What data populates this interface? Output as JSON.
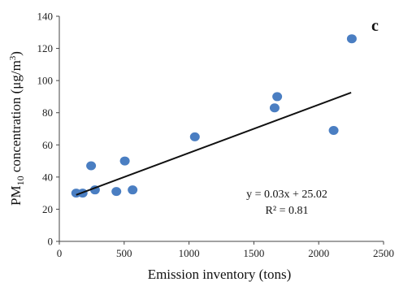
{
  "chart_data": {
    "type": "scatter",
    "panel_label": "c",
    "xlabel": "Emission inventory (tons)",
    "ylabel": {
      "prefix": "PM",
      "subscript": "10",
      "middle": " concentration (μg/m",
      "superscript": "3",
      "suffix": ")"
    },
    "xlim": [
      0,
      2500
    ],
    "ylim": [
      0,
      140
    ],
    "xticks": [
      0,
      500,
      1000,
      1500,
      2000,
      2500
    ],
    "yticks": [
      0,
      20,
      40,
      60,
      80,
      100,
      120,
      140
    ],
    "grid": false,
    "legend": "none",
    "series": [
      {
        "color": "#4a7ec2",
        "points": [
          {
            "x": 130,
            "y": 30
          },
          {
            "x": 180,
            "y": 30
          },
          {
            "x": 245,
            "y": 47
          },
          {
            "x": 275,
            "y": 32
          },
          {
            "x": 440,
            "y": 31
          },
          {
            "x": 505,
            "y": 50
          },
          {
            "x": 565,
            "y": 32
          },
          {
            "x": 1045,
            "y": 65
          },
          {
            "x": 1660,
            "y": 83
          },
          {
            "x": 1680,
            "y": 90
          },
          {
            "x": 2115,
            "y": 69
          },
          {
            "x": 2255,
            "y": 126
          }
        ]
      }
    ],
    "trendline": {
      "color": "#111111",
      "x_start": 130,
      "x_end": 2250,
      "slope": 0.03,
      "intercept": 25.02,
      "equation": "y = 0.03x + 25.02",
      "r_squared": "R² = 0.81"
    }
  }
}
